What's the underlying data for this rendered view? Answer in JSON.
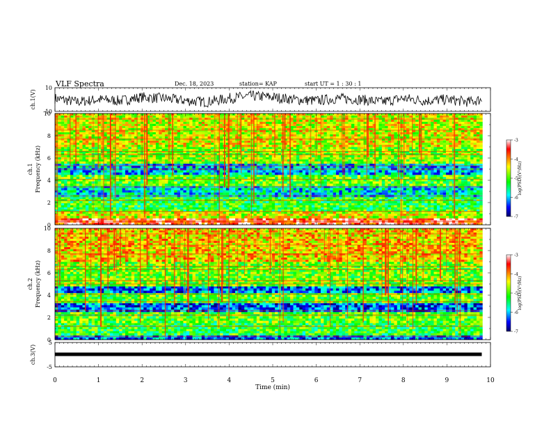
{
  "header": {
    "title": "VLF Spectra",
    "date": "Dec. 18, 2023",
    "station": "station= KAP",
    "start": "start  UT  =   1  : 30 : 1"
  },
  "chart_data": [
    {
      "type": "line",
      "panel": "ch1-waveform",
      "ylabel": "ch.1(V)",
      "ylim": [
        -10,
        10
      ],
      "yticks": [
        "10",
        "-10"
      ],
      "xlim": [
        0,
        10
      ],
      "description_values": "noisy voltage trace oscillating roughly between -8 and 8 V",
      "x": [
        0.0,
        0.5,
        1.0,
        1.5,
        2.0,
        2.5,
        3.0,
        3.5,
        4.0,
        4.5,
        5.0,
        5.5,
        6.0,
        6.5,
        7.0,
        7.5,
        8.0,
        8.5,
        9.0,
        9.5,
        9.8
      ],
      "y": [
        1,
        -2,
        0,
        -1,
        2,
        1,
        -1,
        -2,
        1,
        3,
        2,
        0,
        -1,
        1,
        0,
        -2,
        1,
        -1,
        0,
        -2,
        0
      ]
    },
    {
      "type": "heatmap",
      "panel": "ch1-spectrogram",
      "ylabel": "ch.1\nFrequency  (kHz)",
      "ylim": [
        0,
        10
      ],
      "yticks": [
        "0",
        "2",
        "4",
        "6",
        "8",
        "10"
      ],
      "xlim": [
        0,
        10
      ],
      "colorbar": {
        "label": "log(PSD)(V²/Hz)",
        "range": [
          -7,
          -3
        ],
        "ticks": [
          "-3",
          "-4",
          "-5",
          "-6",
          "-7"
        ]
      },
      "horizontal_bands_khz": [
        {
          "from": 0,
          "to": 0.6,
          "level": -3.5
        },
        {
          "from": 0.6,
          "to": 1.2,
          "level": -4.5
        },
        {
          "from": 1.2,
          "to": 2.5,
          "level": -5.2
        },
        {
          "from": 2.5,
          "to": 3.5,
          "level": -5.8
        },
        {
          "from": 3.5,
          "to": 4.5,
          "level": -5.0
        },
        {
          "from": 4.5,
          "to": 5.5,
          "level": -6.0
        },
        {
          "from": 5.5,
          "to": 7.0,
          "level": -4.8
        },
        {
          "from": 7.0,
          "to": 10.0,
          "level": -4.5
        }
      ]
    },
    {
      "type": "heatmap",
      "panel": "ch2-spectrogram",
      "ylabel": "ch.2\nFrequency  (kHz)",
      "ylim": [
        0,
        10
      ],
      "yticks": [
        "0",
        "2",
        "4",
        "6",
        "8",
        "10"
      ],
      "xlim": [
        0,
        10
      ],
      "colorbar": {
        "label": "log(PSD)(V²/Hz)",
        "range": [
          -7,
          -3
        ],
        "ticks": [
          "-3",
          "-4",
          "-5",
          "-6",
          "-7"
        ]
      },
      "horizontal_bands_khz": [
        {
          "from": 0,
          "to": 0.4,
          "level": -6.2
        },
        {
          "from": 0.4,
          "to": 1.5,
          "level": -5.2
        },
        {
          "from": 1.5,
          "to": 2.5,
          "level": -5.0
        },
        {
          "from": 2.5,
          "to": 3.3,
          "level": -6.3
        },
        {
          "from": 3.3,
          "to": 4.2,
          "level": -5.0
        },
        {
          "from": 4.2,
          "to": 4.8,
          "level": -6.2
        },
        {
          "from": 4.8,
          "to": 7.0,
          "level": -4.9
        },
        {
          "from": 7.0,
          "to": 10.0,
          "level": -4.3
        }
      ]
    },
    {
      "type": "line",
      "panel": "ch3-waveform",
      "ylabel": "ch.3(V)",
      "ylim": [
        -5,
        5
      ],
      "yticks": [
        "5",
        "-5"
      ],
      "xlim": [
        0,
        10
      ],
      "xlabel": "Time  (min)",
      "xticks": [
        "0",
        "1",
        "2",
        "3",
        "4",
        "5",
        "6",
        "7",
        "8",
        "9",
        "10"
      ],
      "x": [
        0,
        9.8
      ],
      "y": [
        0,
        0
      ]
    }
  ]
}
